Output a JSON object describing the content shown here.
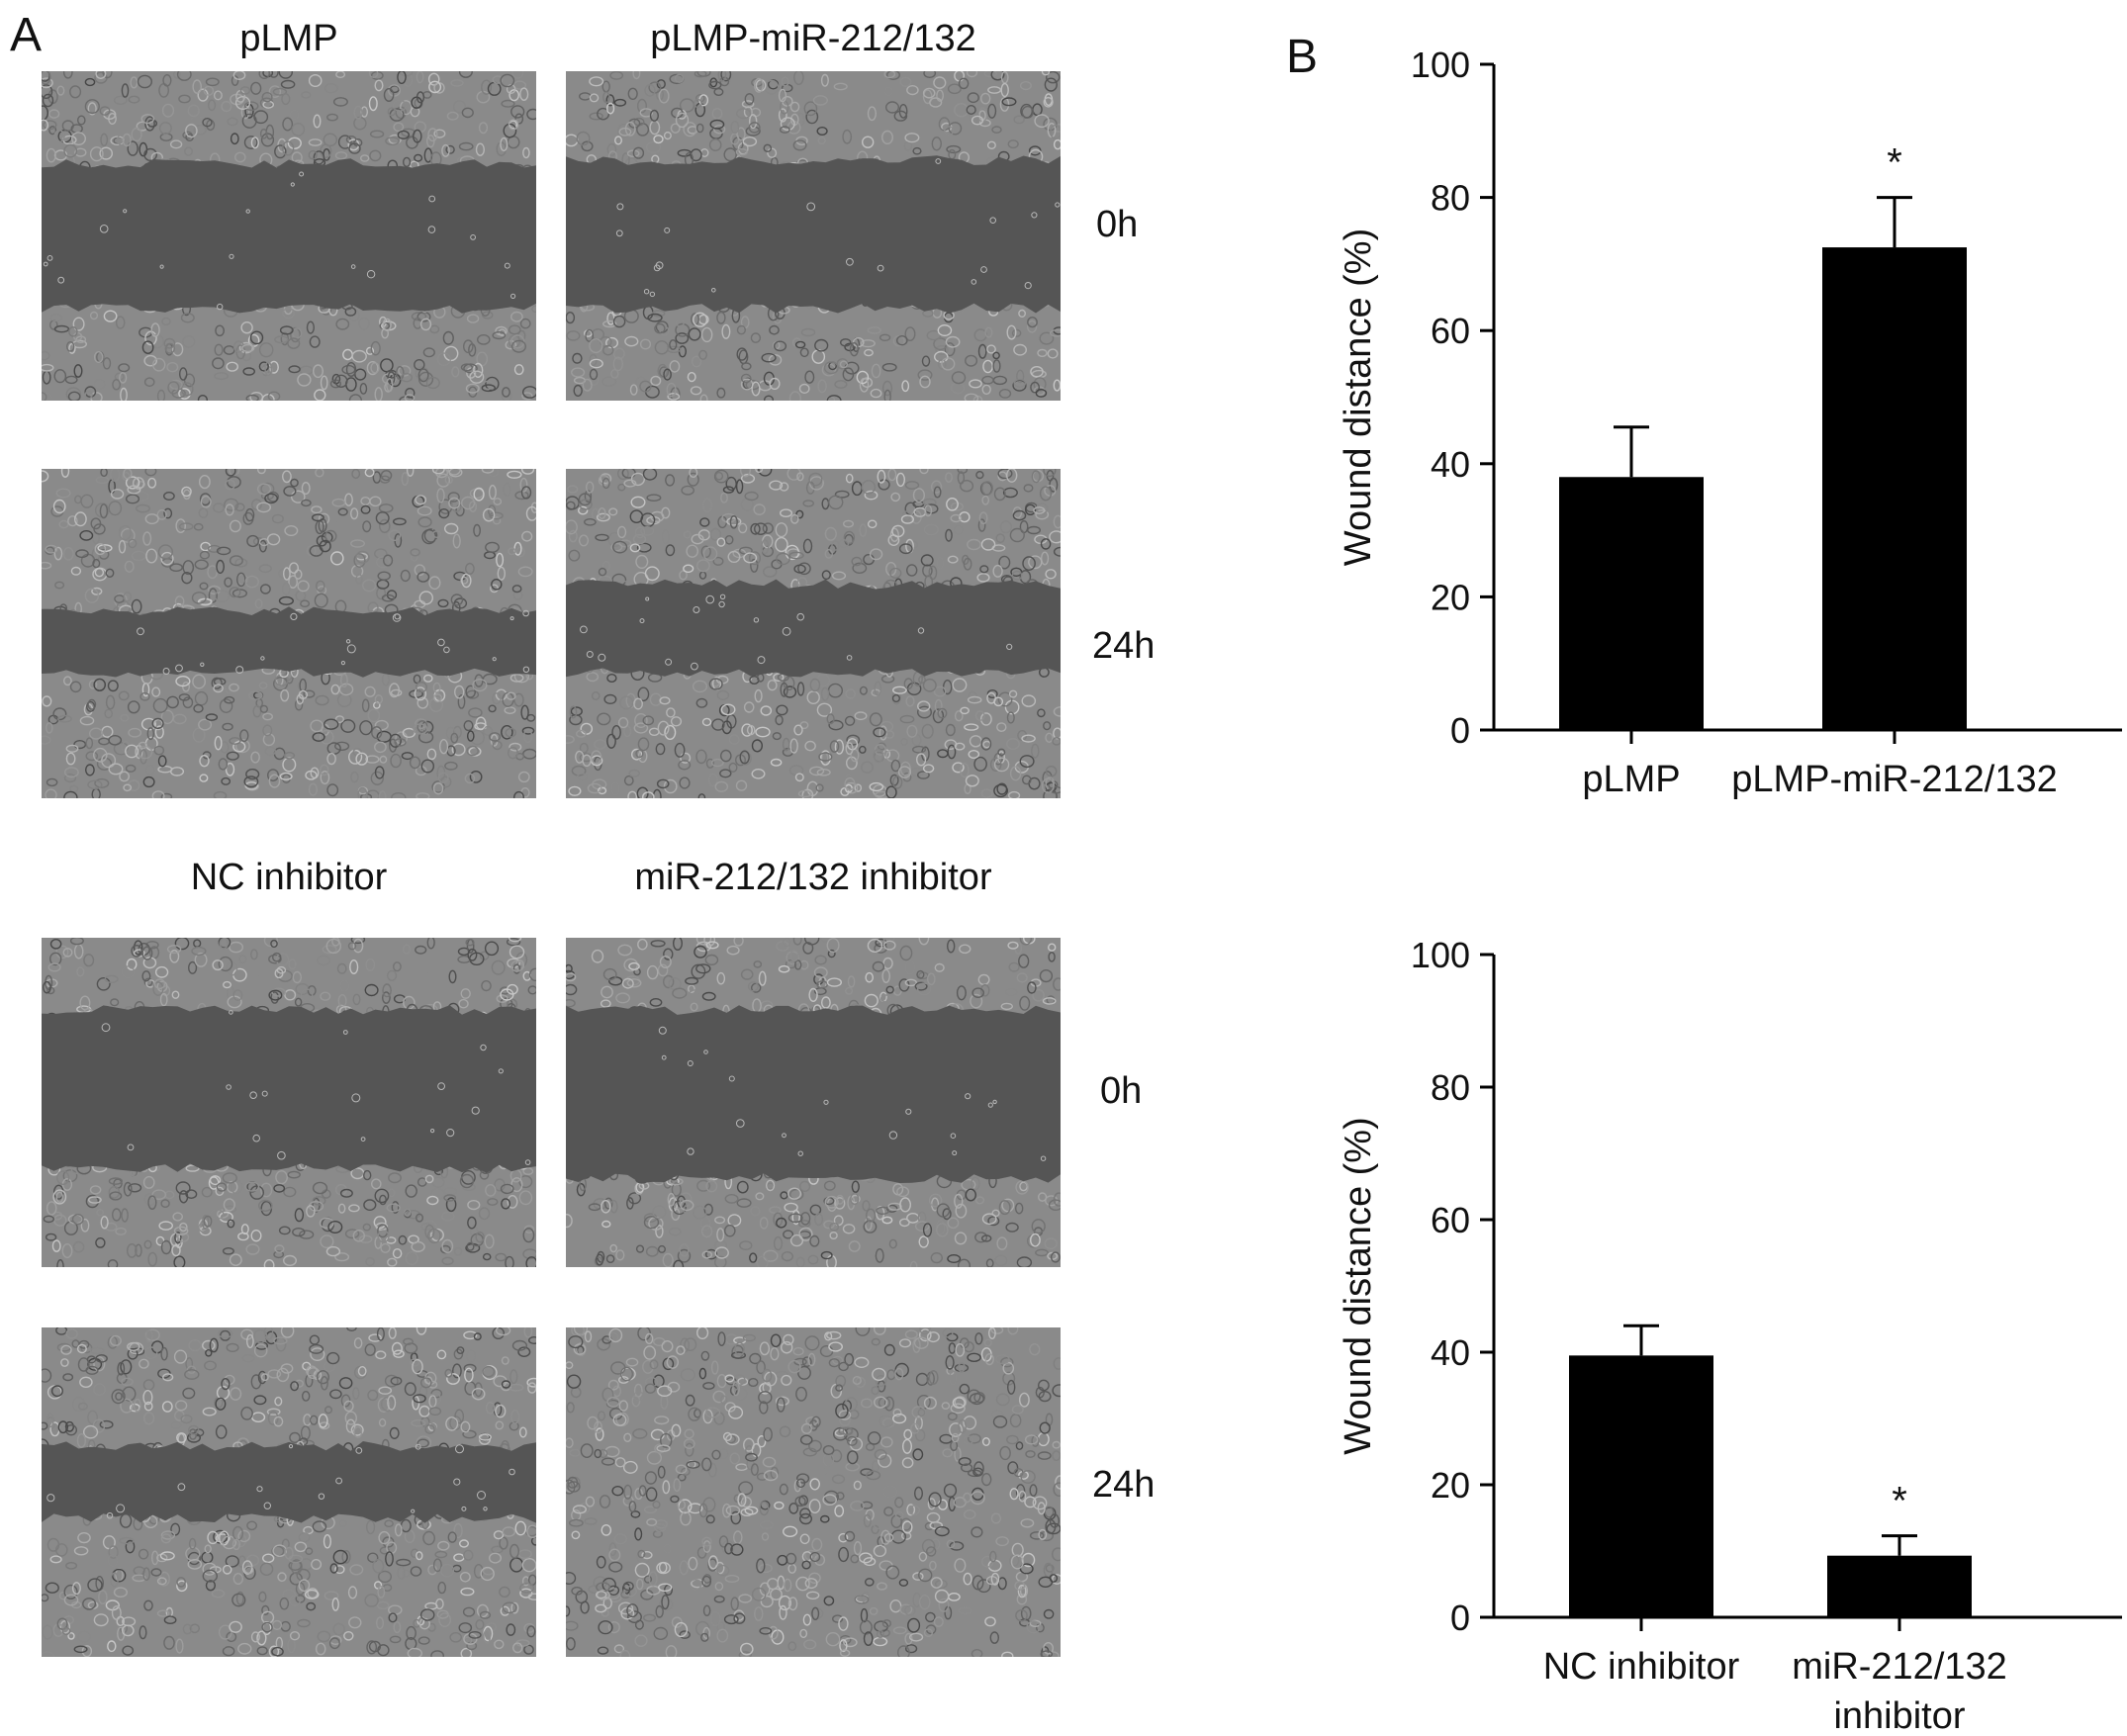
{
  "panel_a": {
    "label": "A",
    "top_group": {
      "col1": "pLMP",
      "col2": "pLMP-miR-212/132",
      "row1": "0h",
      "row2": "24h"
    },
    "bottom_group": {
      "col1": "NC inhibitor",
      "col2": "miR-212/132 inhibitor",
      "row1": "0h",
      "row2": "24h"
    },
    "images": [
      {
        "name": "pLMP 0h",
        "wound_closed": false
      },
      {
        "name": "pLMP-miR-212/132 0h",
        "wound_closed": false
      },
      {
        "name": "pLMP 24h",
        "wound_closed": false
      },
      {
        "name": "pLMP-miR-212/132 24h",
        "wound_closed": false
      },
      {
        "name": "NC inhibitor 0h",
        "wound_closed": false
      },
      {
        "name": "miR-212/132 inhibitor 0h",
        "wound_closed": false
      },
      {
        "name": "NC inhibitor 24h",
        "wound_closed": false
      },
      {
        "name": "miR-212/132 inhibitor 24h",
        "wound_closed": true
      }
    ]
  },
  "panel_b": {
    "label": "B"
  },
  "colors": {
    "bar": "#000000",
    "axis": "#000000",
    "background": "#ffffff"
  },
  "chart_data": [
    {
      "type": "bar",
      "categories": [
        "pLMP",
        "pLMP-miR-212/132"
      ],
      "category_lines": [
        [
          "pLMP"
        ],
        [
          "pLMP-miR-212/132"
        ]
      ],
      "values": [
        38,
        72.5
      ],
      "errors": [
        7.5,
        7.5
      ],
      "significance": [
        "",
        "*"
      ],
      "ylabel": "Wound distance (%)",
      "ylim": [
        0,
        100
      ],
      "yticks": [
        0,
        20,
        40,
        60,
        80,
        100
      ],
      "grid": false,
      "legend": "none"
    },
    {
      "type": "bar",
      "categories": [
        "NC inhibitor",
        "miR-212/132 inhibitor"
      ],
      "category_lines": [
        [
          "NC inhibitor"
        ],
        [
          "miR-212/132",
          "inhibitor"
        ]
      ],
      "values": [
        39.5,
        9.3
      ],
      "errors": [
        4.5,
        3
      ],
      "significance": [
        "",
        "*"
      ],
      "ylabel": "Wound distance (%)",
      "ylim": [
        0,
        100
      ],
      "yticks": [
        0,
        20,
        40,
        60,
        80,
        100
      ],
      "grid": false,
      "legend": "none"
    }
  ]
}
